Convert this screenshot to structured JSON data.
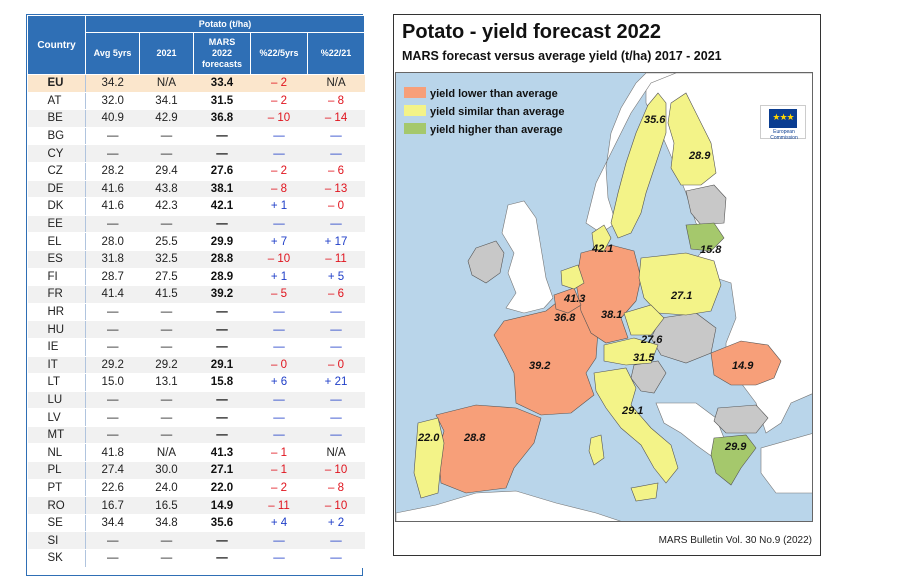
{
  "table": {
    "group_header": "Potato (t/ha)",
    "columns": {
      "country": "Country",
      "avg": "Avg 5yrs",
      "y2021": "2021",
      "forecast": "MARS 2022 forecasts",
      "pct5": "%22/5yrs",
      "pct21": "%22/21"
    },
    "rows": [
      {
        "country": "EU",
        "avg": "34.2",
        "y2021": "N/A",
        "forecast": "33.4",
        "pct5": "– 2",
        "pct21": "N/A"
      },
      {
        "country": "AT",
        "avg": "32.0",
        "y2021": "34.1",
        "forecast": "31.5",
        "pct5": "– 2",
        "pct21": "– 8"
      },
      {
        "country": "BE",
        "avg": "40.9",
        "y2021": "42.9",
        "forecast": "36.8",
        "pct5": "– 10",
        "pct21": "– 14"
      },
      {
        "country": "BG",
        "avg": "—",
        "y2021": "—",
        "forecast": "—",
        "pct5": "—",
        "pct21": "—"
      },
      {
        "country": "CY",
        "avg": "—",
        "y2021": "—",
        "forecast": "—",
        "pct5": "—",
        "pct21": "—"
      },
      {
        "country": "CZ",
        "avg": "28.2",
        "y2021": "29.4",
        "forecast": "27.6",
        "pct5": "– 2",
        "pct21": "– 6"
      },
      {
        "country": "DE",
        "avg": "41.6",
        "y2021": "43.8",
        "forecast": "38.1",
        "pct5": "– 8",
        "pct21": "– 13"
      },
      {
        "country": "DK",
        "avg": "41.6",
        "y2021": "42.3",
        "forecast": "42.1",
        "pct5": "+ 1",
        "pct21": "– 0"
      },
      {
        "country": "EE",
        "avg": "—",
        "y2021": "—",
        "forecast": "—",
        "pct5": "—",
        "pct21": "—"
      },
      {
        "country": "EL",
        "avg": "28.0",
        "y2021": "25.5",
        "forecast": "29.9",
        "pct5": "+ 7",
        "pct21": "+ 17"
      },
      {
        "country": "ES",
        "avg": "31.8",
        "y2021": "32.5",
        "forecast": "28.8",
        "pct5": "– 10",
        "pct21": "– 11"
      },
      {
        "country": "FI",
        "avg": "28.7",
        "y2021": "27.5",
        "forecast": "28.9",
        "pct5": "+ 1",
        "pct21": "+ 5"
      },
      {
        "country": "FR",
        "avg": "41.4",
        "y2021": "41.5",
        "forecast": "39.2",
        "pct5": "– 5",
        "pct21": "– 6"
      },
      {
        "country": "HR",
        "avg": "—",
        "y2021": "—",
        "forecast": "—",
        "pct5": "—",
        "pct21": "—"
      },
      {
        "country": "HU",
        "avg": "—",
        "y2021": "—",
        "forecast": "—",
        "pct5": "—",
        "pct21": "—"
      },
      {
        "country": "IE",
        "avg": "—",
        "y2021": "—",
        "forecast": "—",
        "pct5": "—",
        "pct21": "—"
      },
      {
        "country": "IT",
        "avg": "29.2",
        "y2021": "29.2",
        "forecast": "29.1",
        "pct5": "– 0",
        "pct21": "– 0"
      },
      {
        "country": "LT",
        "avg": "15.0",
        "y2021": "13.1",
        "forecast": "15.8",
        "pct5": "+ 6",
        "pct21": "+ 21"
      },
      {
        "country": "LU",
        "avg": "—",
        "y2021": "—",
        "forecast": "—",
        "pct5": "—",
        "pct21": "—"
      },
      {
        "country": "LV",
        "avg": "—",
        "y2021": "—",
        "forecast": "—",
        "pct5": "—",
        "pct21": "—"
      },
      {
        "country": "MT",
        "avg": "—",
        "y2021": "—",
        "forecast": "—",
        "pct5": "—",
        "pct21": "—"
      },
      {
        "country": "NL",
        "avg": "41.8",
        "y2021": "N/A",
        "forecast": "41.3",
        "pct5": "– 1",
        "pct21": "N/A"
      },
      {
        "country": "PL",
        "avg": "27.4",
        "y2021": "30.0",
        "forecast": "27.1",
        "pct5": "– 1",
        "pct21": "– 10"
      },
      {
        "country": "PT",
        "avg": "22.6",
        "y2021": "24.0",
        "forecast": "22.0",
        "pct5": "– 2",
        "pct21": "– 8"
      },
      {
        "country": "RO",
        "avg": "16.7",
        "y2021": "16.5",
        "forecast": "14.9",
        "pct5": "– 11",
        "pct21": "– 10"
      },
      {
        "country": "SE",
        "avg": "34.4",
        "y2021": "34.8",
        "forecast": "35.6",
        "pct5": "+ 4",
        "pct21": "+ 2"
      },
      {
        "country": "SI",
        "avg": "—",
        "y2021": "—",
        "forecast": "—",
        "pct5": "—",
        "pct21": "—"
      },
      {
        "country": "SK",
        "avg": "—",
        "y2021": "—",
        "forecast": "—",
        "pct5": "—",
        "pct21": "—"
      }
    ]
  },
  "map": {
    "title": "Potato - yield forecast 2022",
    "subtitle": "MARS forecast versus average yield (t/ha) 2017 - 2021",
    "legend": [
      {
        "label": "yield lower than average",
        "color": "#f79f79"
      },
      {
        "label": "yield similar than average",
        "color": "#f3f388"
      },
      {
        "label": "yield higher than average",
        "color": "#a5c86c"
      }
    ],
    "colors": {
      "sea": "#b9d5ea",
      "non_eu": "#ffffff",
      "no_data": "#c8c8c8",
      "lower": "#f79f79",
      "similar": "#f3f388",
      "higher": "#a5c86c",
      "border": "#555555"
    },
    "labels": {
      "SE": "35.6",
      "FI": "28.9",
      "DK": "42.1",
      "LT": "15.8",
      "PL": "27.1",
      "NL": "41.3",
      "BE": "36.8",
      "DE": "38.1",
      "CZ": "27.6",
      "AT": "31.5",
      "FR": "39.2",
      "RO": "14.9",
      "IT": "29.1",
      "PT": "22.0",
      "ES": "28.8",
      "EL": "29.9"
    },
    "logo_text": "European Commission",
    "source": "MARS Bulletin Vol. 30 No.9 (2022)"
  }
}
